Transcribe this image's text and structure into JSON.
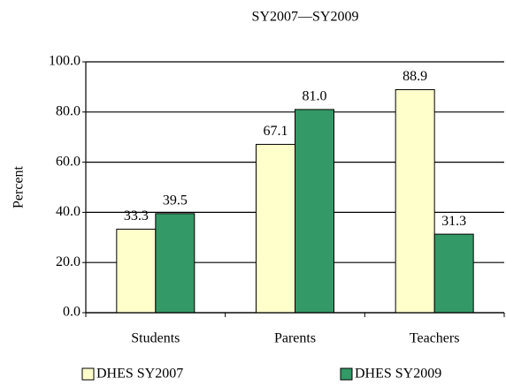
{
  "chart_data": {
    "type": "bar",
    "title": "SY2007—SY2009",
    "y_label": "Percent",
    "categories": [
      "Students",
      "Parents",
      "Teachers"
    ],
    "series": [
      {
        "name": "DHES SY2007",
        "color": "#ffffcc",
        "values": [
          33.3,
          67.1,
          88.9
        ],
        "value_labels": [
          "33.3",
          "67.1",
          "88.9"
        ]
      },
      {
        "name": "DHES SY2009",
        "color": "#339966",
        "values": [
          39.5,
          81.0,
          31.3
        ],
        "value_labels": [
          "39.5",
          "81.0",
          "31.3"
        ]
      }
    ],
    "ylim": [
      0,
      100
    ],
    "yticks": [
      {
        "value": 0,
        "label": "0.0"
      },
      {
        "value": 20,
        "label": "20.0"
      },
      {
        "value": 40,
        "label": "40.0"
      },
      {
        "value": 60,
        "label": "60.0"
      },
      {
        "value": 80,
        "label": "80.0"
      },
      {
        "value": 100,
        "label": "100.0"
      }
    ],
    "grid": true,
    "legend": "bottom"
  }
}
